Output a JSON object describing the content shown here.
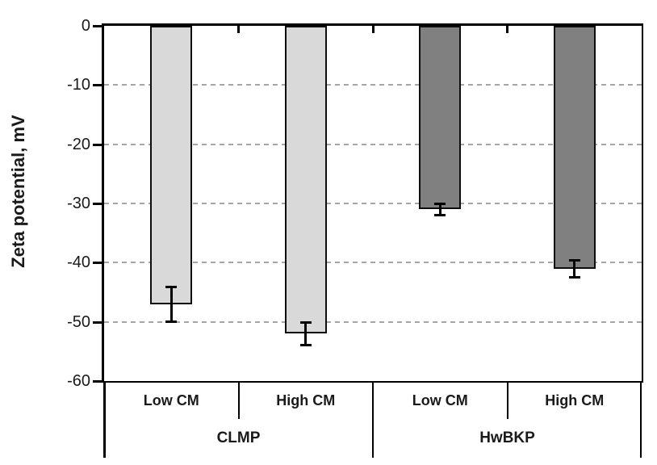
{
  "chart_data": {
    "type": "bar",
    "title": "",
    "ylabel": "Zeta potential, mV",
    "xlabel": "",
    "ylim": [
      -60,
      0
    ],
    "yticks": [
      0,
      -10,
      -20,
      -30,
      -40,
      -50,
      -60
    ],
    "grid": "horizontal dashed gridlines at every 10 mV",
    "legend_position": "none",
    "categories": [
      "Low CM",
      "High CM",
      "Low CM",
      "High CM"
    ],
    "series": [
      {
        "name": "Zeta potential (mV)",
        "values": [
          -47,
          -52,
          -31,
          -41
        ],
        "errors": [
          3,
          2,
          1,
          1.5
        ]
      }
    ],
    "groups": [
      {
        "label": "CLMP",
        "bar_color": "#d9d9d9",
        "bars": [
          {
            "label": "Low CM",
            "value": -47,
            "error": 3
          },
          {
            "label": "High CM",
            "value": -52,
            "error": 2
          }
        ]
      },
      {
        "label": "HwBKP",
        "bar_color": "#808080",
        "bars": [
          {
            "label": "Low CM",
            "value": -31,
            "error": 1
          },
          {
            "label": "High CM",
            "value": -41,
            "error": 1.5
          }
        ]
      }
    ]
  },
  "colors": {
    "background": "#ffffff",
    "axis": "#000000",
    "bar_border": "#0d0d0d",
    "gridline": "#a6a6a6",
    "text": "#1a1a1a",
    "bar_light": "#d9d9d9",
    "bar_dark": "#808080"
  }
}
